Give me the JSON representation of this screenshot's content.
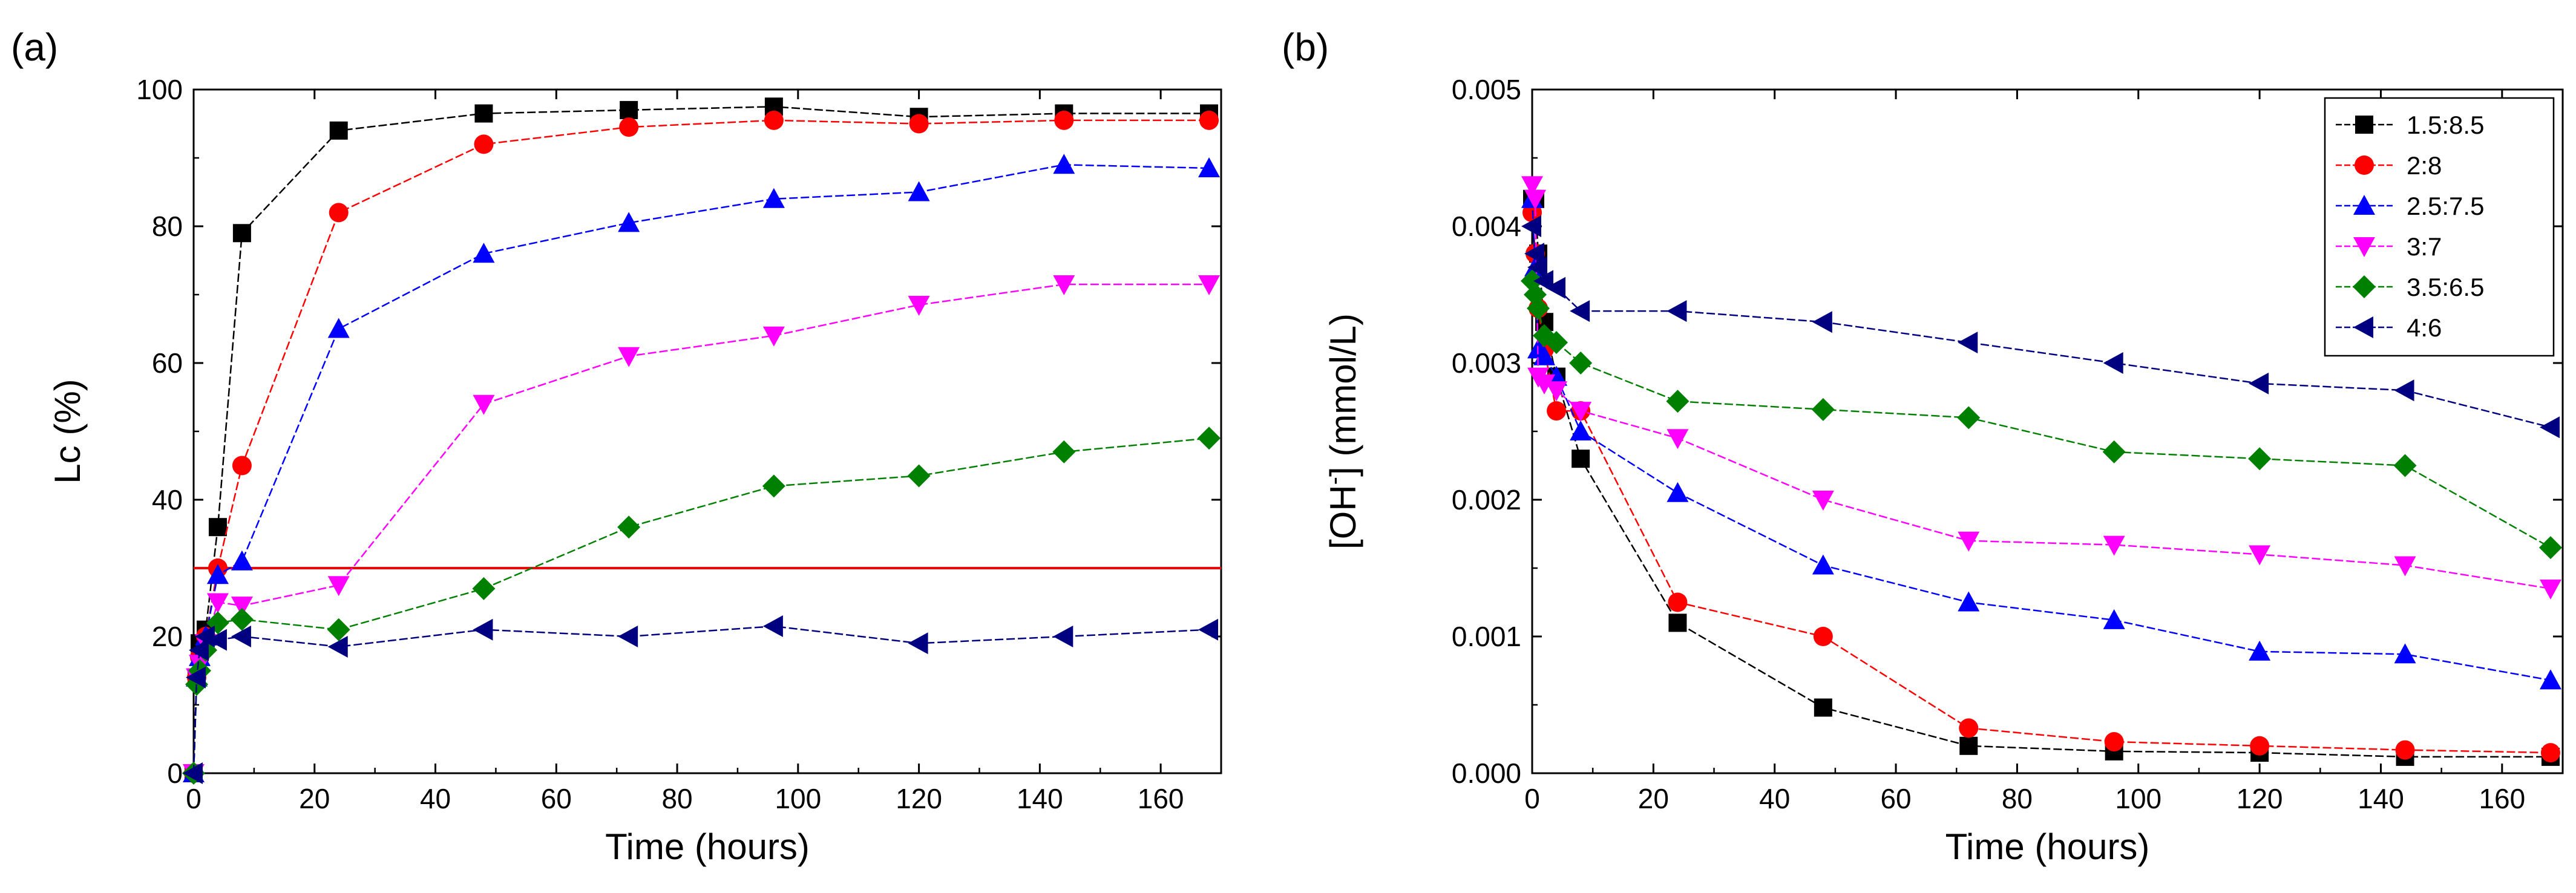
{
  "chart_data": [
    {
      "type": "line",
      "panel_label": "(a)",
      "xlabel": "Time (hours)",
      "ylabel": "Lc (%)",
      "xlim": [
        0,
        170
      ],
      "ylim": [
        0,
        100
      ],
      "xticks": [
        0,
        20,
        40,
        60,
        80,
        100,
        120,
        140,
        160
      ],
      "yticks": [
        0,
        20,
        40,
        60,
        80,
        100
      ],
      "grid": false,
      "legend": "none",
      "reference_line": {
        "y": 30,
        "color": "#ff0000"
      },
      "series": [
        {
          "color": "#000000",
          "marker": "square",
          "x": [
            0,
            0.5,
            1,
            2,
            4,
            8,
            24,
            48,
            72,
            96,
            120,
            144,
            168
          ],
          "y": [
            0,
            14,
            19,
            21,
            36,
            79,
            94,
            96.5,
            97,
            97.5,
            96,
            96.5,
            96.5
          ]
        },
        {
          "color": "#ff0000",
          "marker": "circle",
          "x": [
            0,
            0.5,
            1,
            2,
            4,
            8,
            24,
            48,
            72,
            96,
            120,
            144,
            168
          ],
          "y": [
            0,
            14,
            17,
            20,
            30,
            45,
            82,
            92,
            94.5,
            95.5,
            95,
            95.5,
            95.5
          ]
        },
        {
          "color": "#0000ff",
          "marker": "triangle-up",
          "x": [
            0,
            0.5,
            1,
            2,
            4,
            8,
            24,
            48,
            72,
            96,
            120,
            144,
            168
          ],
          "y": [
            0,
            14,
            17,
            20,
            29,
            31,
            65,
            76,
            80.5,
            84,
            85,
            89,
            88.5
          ]
        },
        {
          "color": "#ff00ff",
          "marker": "triangle-down",
          "x": [
            0,
            0.5,
            1,
            2,
            4,
            8,
            24,
            48,
            72,
            96,
            120,
            144,
            168
          ],
          "y": [
            0,
            14,
            16,
            19,
            25,
            24.5,
            27.5,
            54,
            61,
            64,
            68.5,
            71.5,
            71.5
          ]
        },
        {
          "color": "#008000",
          "marker": "diamond",
          "x": [
            0,
            0.5,
            1,
            2,
            4,
            8,
            24,
            48,
            72,
            96,
            120,
            144,
            168
          ],
          "y": [
            0,
            13,
            15,
            18,
            22,
            22.5,
            21,
            27,
            36,
            42,
            43.5,
            47,
            49
          ]
        },
        {
          "color": "#000080",
          "marker": "triangle-left",
          "x": [
            0,
            0.5,
            1,
            2,
            4,
            8,
            24,
            48,
            72,
            96,
            120,
            144,
            168
          ],
          "y": [
            0,
            14,
            18,
            20,
            19.5,
            20,
            18.5,
            21,
            20,
            21.5,
            19,
            20,
            21
          ]
        }
      ]
    },
    {
      "type": "line",
      "panel_label": "(b)",
      "xlabel": "Time (hours)",
      "ylabel": "[OH",
      "ylabel_sup": "-",
      "ylabel_tail": "] (mmol/L)",
      "xlim": [
        0,
        170
      ],
      "ylim": [
        0,
        0.005
      ],
      "xticks": [
        0,
        20,
        40,
        60,
        80,
        100,
        120,
        140,
        160
      ],
      "yticks": [
        0.0,
        0.001,
        0.002,
        0.003,
        0.004,
        0.005
      ],
      "ytick_labels": [
        "0.000",
        "0.001",
        "0.002",
        "0.003",
        "0.004",
        "0.005"
      ],
      "grid": false,
      "legend": "top-right",
      "series": [
        {
          "name": "1.5:8.5",
          "color": "#000000",
          "marker": "square",
          "x": [
            0,
            0.5,
            1,
            2,
            4,
            8,
            24,
            48,
            72,
            96,
            120,
            144,
            168
          ],
          "y": [
            0.0042,
            0.0042,
            0.0038,
            0.0033,
            0.0029,
            0.0023,
            0.0011,
            0.00048,
            0.0002,
            0.00016,
            0.00015,
            0.00012,
            0.00012
          ]
        },
        {
          "name": "2:8",
          "color": "#ff0000",
          "marker": "circle",
          "x": [
            0,
            0.5,
            1,
            2,
            4,
            8,
            24,
            48,
            72,
            96,
            120,
            144,
            168
          ],
          "y": [
            0.0041,
            0.0038,
            0.0034,
            0.0031,
            0.00265,
            0.00265,
            0.00125,
            0.001,
            0.00033,
            0.00023,
            0.0002,
            0.00017,
            0.00015
          ]
        },
        {
          "name": "2.5:7.5",
          "color": "#0000ff",
          "marker": "triangle-up",
          "x": [
            0,
            0.5,
            1,
            2,
            4,
            8,
            24,
            48,
            72,
            96,
            120,
            144,
            168
          ],
          "y": [
            0.0042,
            0.0037,
            0.0031,
            0.00305,
            0.0029,
            0.0025,
            0.00205,
            0.00152,
            0.00125,
            0.00112,
            0.00089,
            0.00087,
            0.00068
          ]
        },
        {
          "name": "3:7",
          "color": "#ff00ff",
          "marker": "triangle-down",
          "x": [
            0,
            0.5,
            1,
            2,
            4,
            8,
            24,
            48,
            72,
            96,
            120,
            144,
            168
          ],
          "y": [
            0.0043,
            0.0042,
            0.0029,
            0.00285,
            0.0028,
            0.00265,
            0.00245,
            0.002,
            0.0017,
            0.00167,
            0.0016,
            0.00152,
            0.00135
          ]
        },
        {
          "name": "3.5:6.5",
          "color": "#008000",
          "marker": "diamond",
          "x": [
            0,
            0.5,
            1,
            2,
            4,
            8,
            24,
            48,
            72,
            96,
            120,
            144,
            168
          ],
          "y": [
            0.0036,
            0.0035,
            0.0034,
            0.0032,
            0.00315,
            0.003,
            0.00272,
            0.00266,
            0.0026,
            0.00235,
            0.0023,
            0.00225,
            0.00165
          ]
        },
        {
          "name": "4:6",
          "color": "#000080",
          "marker": "triangle-left",
          "x": [
            0,
            0.5,
            1,
            2,
            4,
            8,
            24,
            48,
            72,
            96,
            120,
            144,
            168
          ],
          "y": [
            0.004,
            0.0038,
            0.0037,
            0.0036,
            0.00355,
            0.00338,
            0.00338,
            0.0033,
            0.00315,
            0.003,
            0.00285,
            0.0028,
            0.00253
          ]
        }
      ]
    }
  ]
}
